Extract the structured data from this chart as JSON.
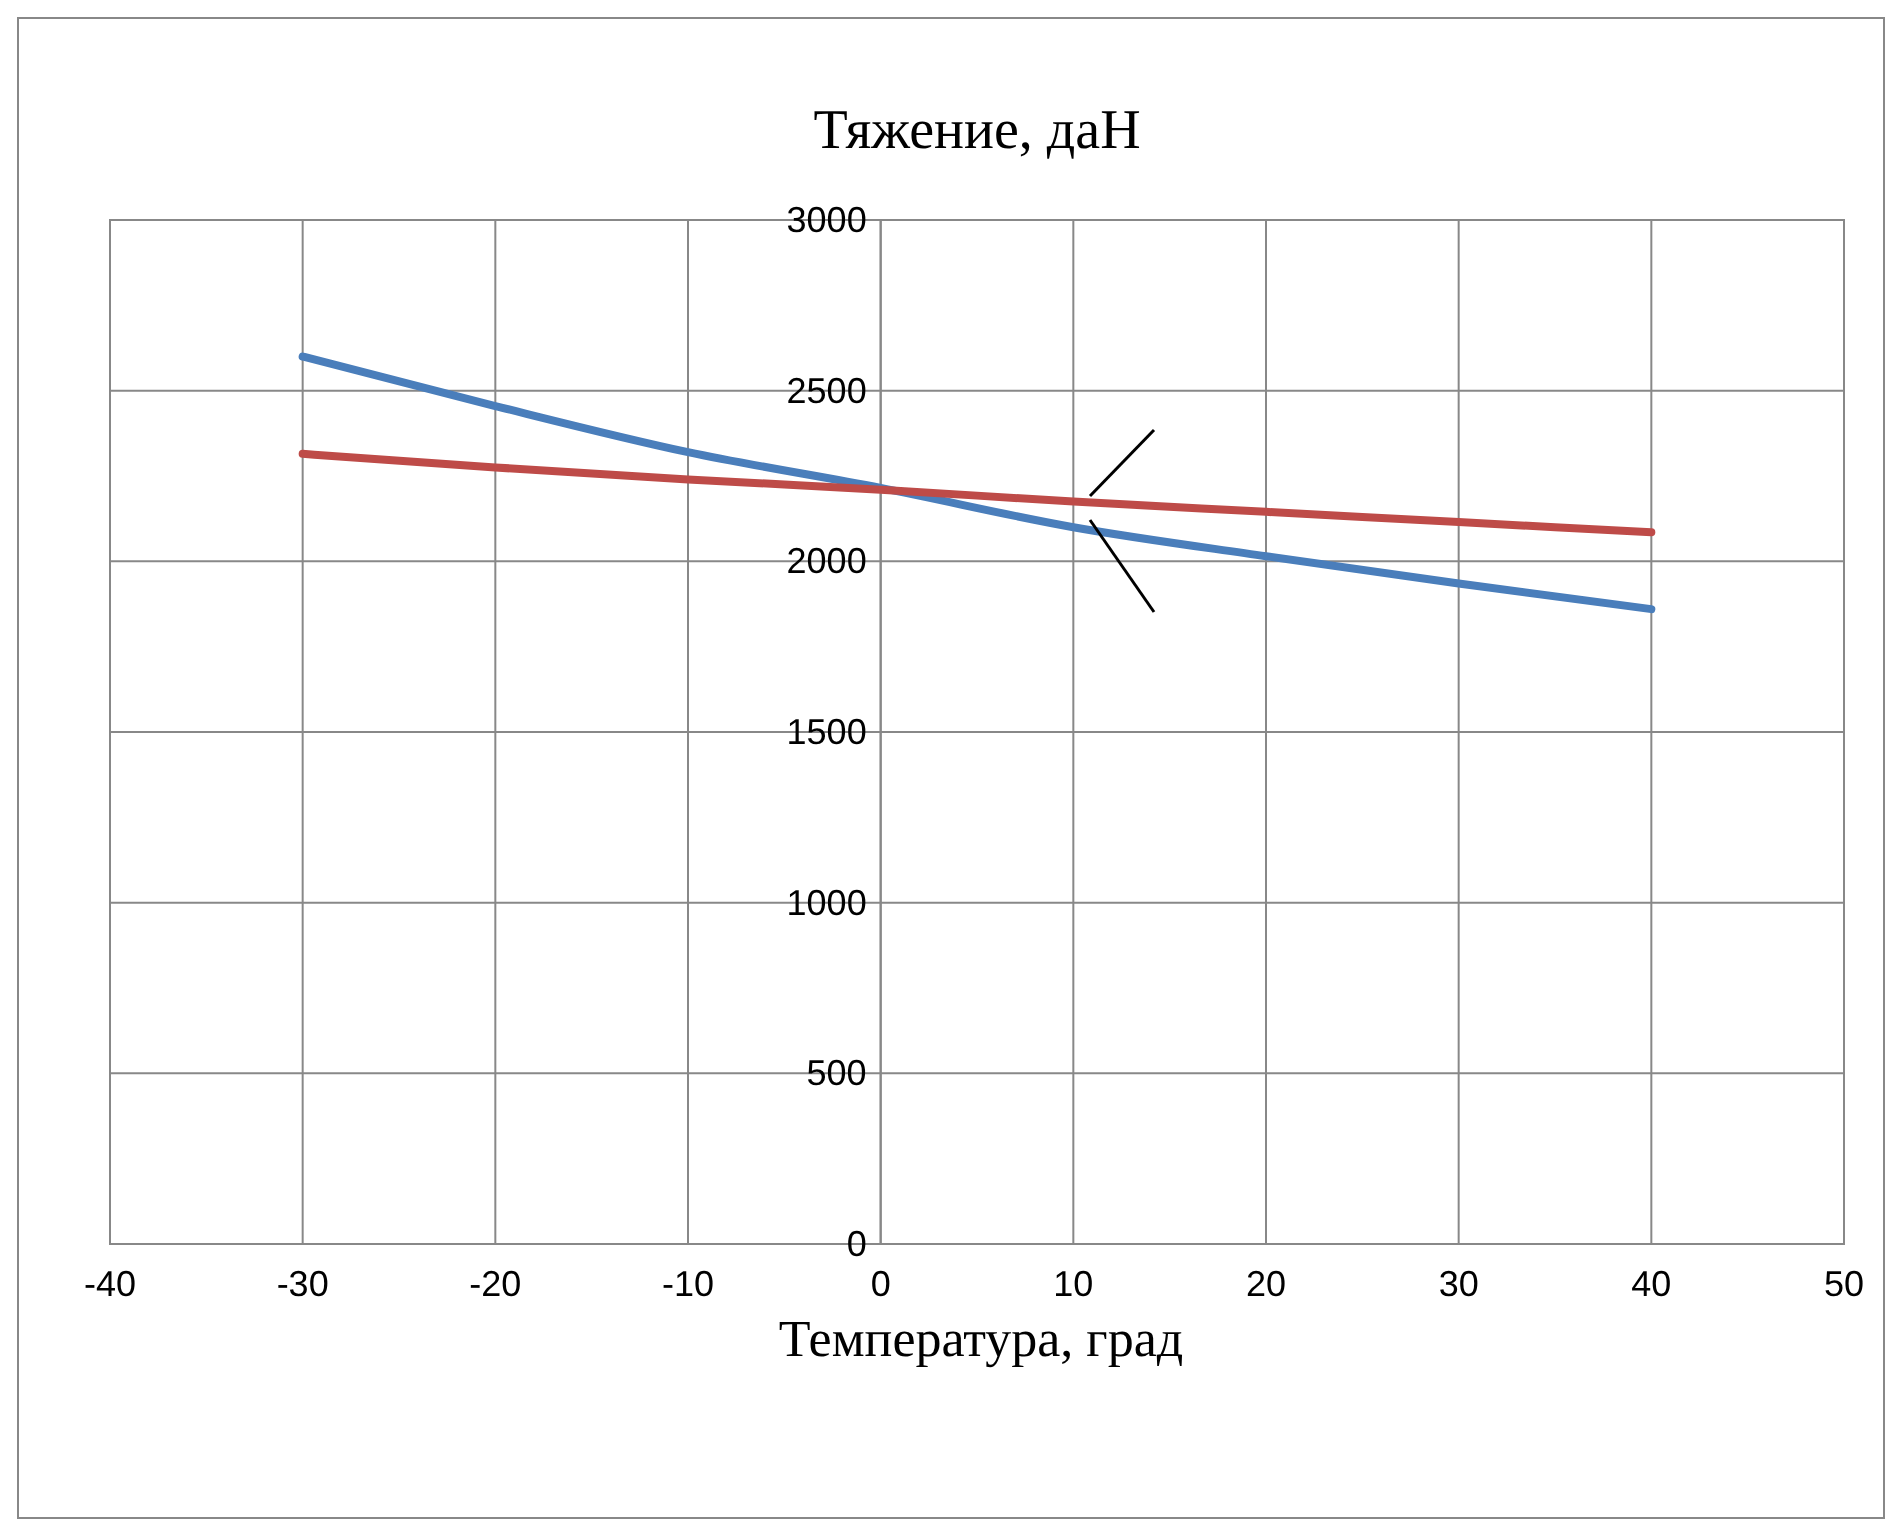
{
  "chart_data": {
    "type": "line",
    "title": "Тяжение, даН",
    "xlabel": "Температура, град",
    "x": [
      -30,
      -20,
      -10,
      0,
      10,
      20,
      30,
      40
    ],
    "series": [
      {
        "color": "#4a7ebb",
        "values": [
          2600,
          2455,
          2320,
          2215,
          2100,
          2015,
          1935,
          1860
        ]
      },
      {
        "color": "#be4b48",
        "values": [
          2315,
          2275,
          2240,
          2210,
          2175,
          2145,
          2115,
          2085
        ]
      }
    ],
    "xlim": [
      -40,
      50
    ],
    "xticks": [
      -40,
      -30,
      -20,
      -10,
      0,
      10,
      20,
      30,
      40,
      50
    ],
    "ylim": [
      0,
      3000
    ],
    "yticks": [
      0,
      500,
      1000,
      1500,
      2000,
      2500,
      3000
    ],
    "grid": true,
    "marker": "none",
    "line_style": "solid"
  }
}
